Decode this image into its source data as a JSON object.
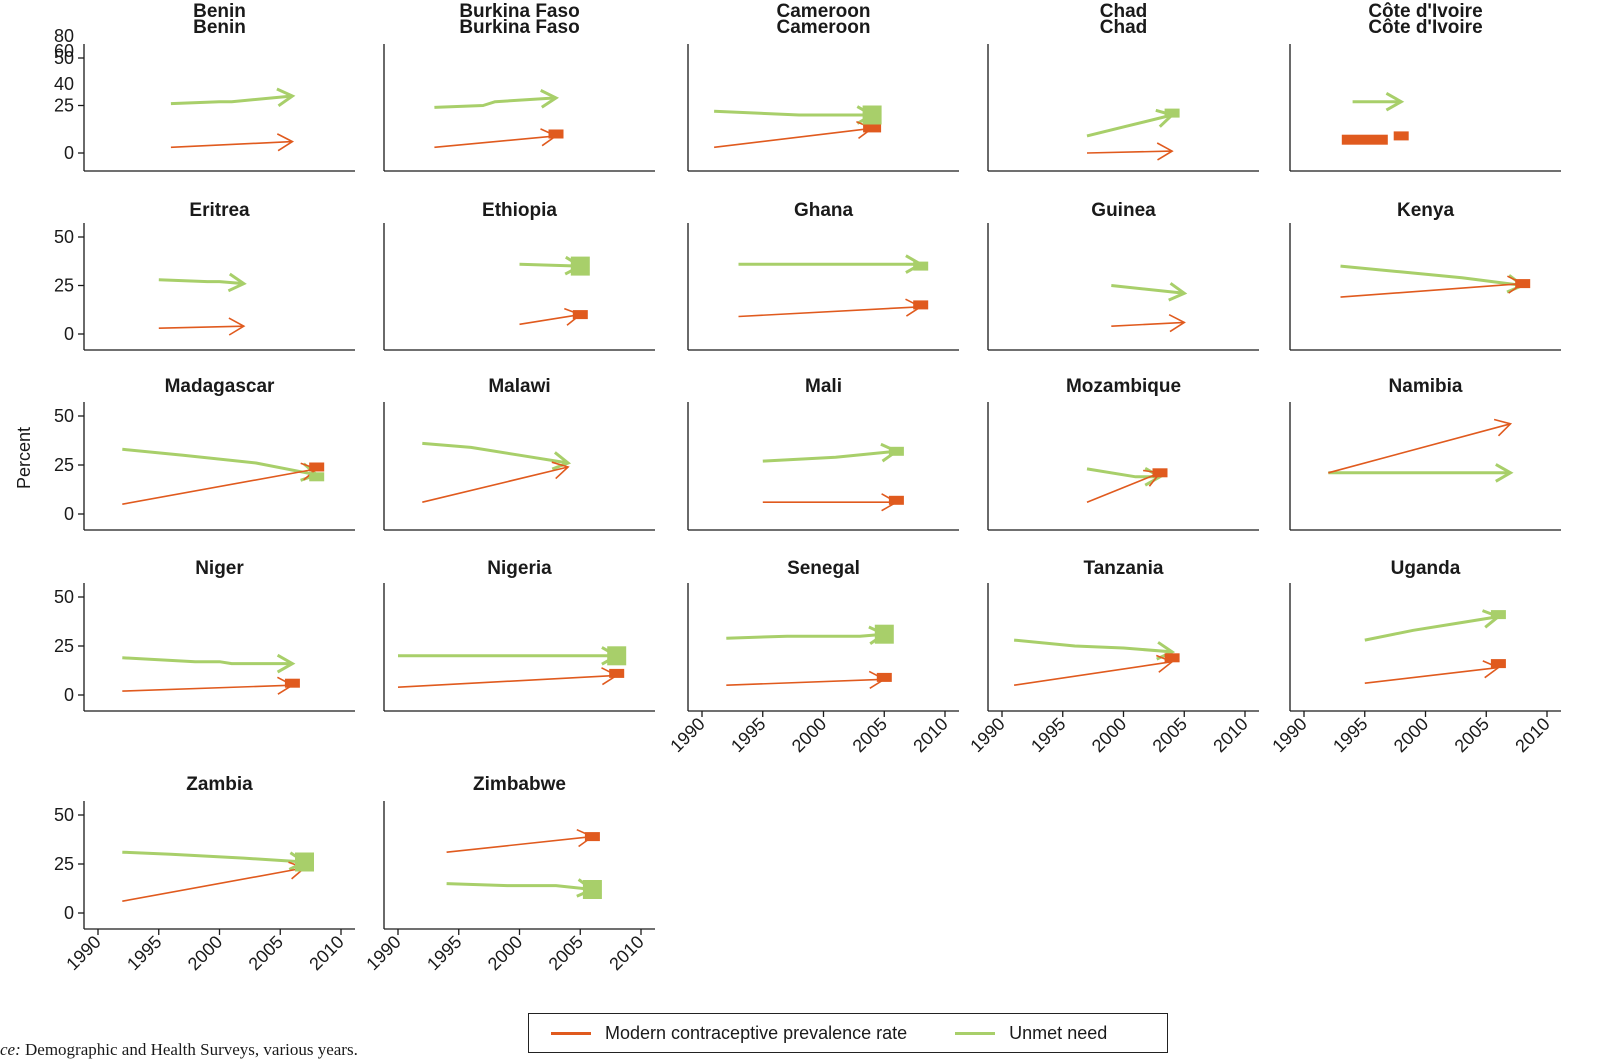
{
  "chart_data": {
    "type": "line",
    "ylabel": "Percent",
    "xlim": [
      1990,
      2010
    ],
    "ylim": [
      0,
      50
    ],
    "x_ticks": [
      "1990",
      "1995",
      "2000",
      "2005",
      "2010"
    ],
    "y_ticks": [
      "0",
      "25",
      "50"
    ],
    "first_panel_extra_y_ticks": [
      "80",
      "60",
      "40"
    ],
    "legend_position": "bottom",
    "legend": [
      {
        "name": "Modern contraceptive prevalence rate",
        "color": "#e05a1e"
      },
      {
        "name": "Unmet need",
        "color": "#a8cf6a"
      }
    ],
    "panels": [
      {
        "title": "Benin",
        "title_repeat": "Benin",
        "mcpr": [
          [
            1996,
            3
          ],
          [
            2006,
            6
          ]
        ],
        "unmet": [
          [
            1996,
            26
          ],
          [
            2000,
            27
          ],
          [
            2001,
            27
          ],
          [
            2006,
            30
          ]
        ],
        "markers": []
      },
      {
        "title": "Burkina Faso",
        "title_repeat": "Burkina Faso",
        "mcpr": [
          [
            1993,
            3
          ],
          [
            2003,
            9
          ]
        ],
        "unmet": [
          [
            1993,
            24
          ],
          [
            1997,
            25
          ],
          [
            1998,
            27
          ],
          [
            2003,
            29
          ]
        ],
        "markers": [
          {
            "series": "mcpr",
            "x": 2003,
            "y": 10,
            "size": "small"
          }
        ]
      },
      {
        "title": "Cameroon",
        "title_repeat": "Cameroon",
        "mcpr": [
          [
            1991,
            3
          ],
          [
            2004,
            13
          ]
        ],
        "unmet": [
          [
            1991,
            22
          ],
          [
            1998,
            20
          ],
          [
            2004,
            20
          ]
        ],
        "markers": [
          {
            "series": "mcpr",
            "x": 2004,
            "y": 14,
            "size": "medium"
          },
          {
            "series": "unmet",
            "x": 2004,
            "y": 20,
            "size": "large"
          }
        ]
      },
      {
        "title": "Chad",
        "title_repeat": "Chad",
        "mcpr": [
          [
            1997,
            0
          ],
          [
            2004,
            1
          ]
        ],
        "unmet": [
          [
            1997,
            9
          ],
          [
            2004,
            20
          ]
        ],
        "markers": [
          {
            "series": "unmet",
            "x": 2004,
            "y": 21,
            "size": "small"
          }
        ]
      },
      {
        "title": "Côte d'Ivoire",
        "title_repeat": "Côte d'Ivoire",
        "mcpr": [],
        "unmet": [
          [
            1994,
            27
          ],
          [
            1998,
            27
          ]
        ],
        "markers": [
          {
            "series": "mcpr",
            "x": 1995,
            "y": 7,
            "size": "wide"
          },
          {
            "series": "mcpr",
            "x": 1998,
            "y": 9,
            "size": "small"
          }
        ]
      },
      {
        "title": "Eritrea",
        "mcpr": [
          [
            1995,
            3
          ],
          [
            2002,
            4
          ]
        ],
        "unmet": [
          [
            1995,
            28
          ],
          [
            1999,
            27
          ],
          [
            2000,
            27
          ],
          [
            2002,
            26
          ]
        ],
        "markers": []
      },
      {
        "title": "Ethiopia",
        "mcpr": [
          [
            2000,
            5
          ],
          [
            2005,
            10
          ]
        ],
        "unmet": [
          [
            2000,
            36
          ],
          [
            2005,
            35
          ]
        ],
        "markers": [
          {
            "series": "mcpr",
            "x": 2005,
            "y": 10,
            "size": "small"
          },
          {
            "series": "unmet",
            "x": 2005,
            "y": 35,
            "size": "large"
          }
        ]
      },
      {
        "title": "Ghana",
        "mcpr": [
          [
            1993,
            9
          ],
          [
            2008,
            14
          ]
        ],
        "unmet": [
          [
            1993,
            36
          ],
          [
            2008,
            36
          ]
        ],
        "markers": [
          {
            "series": "mcpr",
            "x": 2008,
            "y": 15,
            "size": "small"
          },
          {
            "series": "unmet",
            "x": 2008,
            "y": 35,
            "size": "small"
          }
        ]
      },
      {
        "title": "Guinea",
        "mcpr": [
          [
            1999,
            4
          ],
          [
            2005,
            6
          ]
        ],
        "unmet": [
          [
            1999,
            25
          ],
          [
            2005,
            21
          ]
        ],
        "markers": []
      },
      {
        "title": "Kenya",
        "mcpr": [
          [
            1993,
            19
          ],
          [
            2008,
            26
          ]
        ],
        "unmet": [
          [
            1993,
            35
          ],
          [
            1998,
            32
          ],
          [
            2003,
            29
          ],
          [
            2008,
            25
          ]
        ],
        "markers": [
          {
            "series": "mcpr",
            "x": 2008,
            "y": 26,
            "size": "small"
          }
        ]
      },
      {
        "title": "Madagascar",
        "mcpr": [
          [
            1992,
            5
          ],
          [
            2008,
            23
          ]
        ],
        "unmet": [
          [
            1992,
            33
          ],
          [
            1997,
            30
          ],
          [
            2003,
            26
          ],
          [
            2008,
            20
          ]
        ],
        "markers": [
          {
            "series": "mcpr",
            "x": 2008,
            "y": 24,
            "size": "small"
          },
          {
            "series": "unmet",
            "x": 2008,
            "y": 19,
            "size": "small"
          }
        ]
      },
      {
        "title": "Malawi",
        "mcpr": [
          [
            1992,
            6
          ],
          [
            2004,
            24
          ]
        ],
        "unmet": [
          [
            1992,
            36
          ],
          [
            1996,
            34
          ],
          [
            2000,
            30
          ],
          [
            2004,
            26
          ]
        ],
        "markers": []
      },
      {
        "title": "Mali",
        "mcpr": [
          [
            1995,
            6
          ],
          [
            2006,
            6
          ]
        ],
        "unmet": [
          [
            1995,
            27
          ],
          [
            2001,
            29
          ],
          [
            2006,
            32
          ]
        ],
        "markers": [
          {
            "series": "mcpr",
            "x": 2006,
            "y": 7,
            "size": "small"
          },
          {
            "series": "unmet",
            "x": 2006,
            "y": 32,
            "size": "small"
          }
        ]
      },
      {
        "title": "Mozambique",
        "mcpr": [
          [
            1997,
            6
          ],
          [
            2003,
            21
          ]
        ],
        "unmet": [
          [
            1997,
            23
          ],
          [
            2001,
            19
          ],
          [
            2003,
            19
          ]
        ],
        "markers": [
          {
            "series": "mcpr",
            "x": 2003,
            "y": 21,
            "size": "small"
          }
        ]
      },
      {
        "title": "Namibia",
        "mcpr": [
          [
            1992,
            21
          ],
          [
            2007,
            46
          ]
        ],
        "unmet": [
          [
            1992,
            21
          ],
          [
            2007,
            21
          ]
        ],
        "markers": []
      },
      {
        "title": "Niger",
        "mcpr": [
          [
            1992,
            2
          ],
          [
            2006,
            5
          ]
        ],
        "unmet": [
          [
            1992,
            19
          ],
          [
            1998,
            17
          ],
          [
            2000,
            17
          ],
          [
            2001,
            16
          ],
          [
            2006,
            16
          ]
        ],
        "markers": [
          {
            "series": "mcpr",
            "x": 2006,
            "y": 6,
            "size": "small"
          }
        ]
      },
      {
        "title": "Nigeria",
        "mcpr": [
          [
            1990,
            4
          ],
          [
            2008,
            10
          ]
        ],
        "unmet": [
          [
            1990,
            20
          ],
          [
            2008,
            20
          ]
        ],
        "markers": [
          {
            "series": "mcpr",
            "x": 2008,
            "y": 11,
            "size": "small"
          },
          {
            "series": "unmet",
            "x": 2008,
            "y": 20,
            "size": "large"
          }
        ]
      },
      {
        "title": "Senegal",
        "mcpr": [
          [
            1992,
            5
          ],
          [
            2005,
            8
          ]
        ],
        "unmet": [
          [
            1992,
            29
          ],
          [
            1997,
            30
          ],
          [
            2003,
            30
          ],
          [
            2005,
            31
          ]
        ],
        "markers": [
          {
            "series": "mcpr",
            "x": 2005,
            "y": 9,
            "size": "small"
          },
          {
            "series": "unmet",
            "x": 2005,
            "y": 31,
            "size": "large"
          }
        ]
      },
      {
        "title": "Tanzania",
        "mcpr": [
          [
            1991,
            5
          ],
          [
            2004,
            17
          ]
        ],
        "unmet": [
          [
            1991,
            28
          ],
          [
            1996,
            25
          ],
          [
            2000,
            24
          ],
          [
            2004,
            22
          ]
        ],
        "markers": [
          {
            "series": "mcpr",
            "x": 2004,
            "y": 19,
            "size": "small"
          }
        ]
      },
      {
        "title": "Uganda",
        "mcpr": [
          [
            1995,
            6
          ],
          [
            2006,
            14
          ]
        ],
        "unmet": [
          [
            1995,
            28
          ],
          [
            1999,
            33
          ],
          [
            2003,
            37
          ],
          [
            2006,
            40
          ]
        ],
        "markers": [
          {
            "series": "mcpr",
            "x": 2006,
            "y": 16,
            "size": "small"
          },
          {
            "series": "unmet",
            "x": 2006,
            "y": 41,
            "size": "small"
          }
        ]
      },
      {
        "title": "Zambia",
        "mcpr": [
          [
            1992,
            6
          ],
          [
            2007,
            23
          ]
        ],
        "unmet": [
          [
            1992,
            31
          ],
          [
            1996,
            30
          ],
          [
            2002,
            28
          ],
          [
            2007,
            26
          ]
        ],
        "markers": [
          {
            "series": "unmet",
            "x": 2007,
            "y": 26,
            "size": "large"
          }
        ]
      },
      {
        "title": "Zimbabwe",
        "mcpr": [
          [
            1994,
            31
          ],
          [
            2006,
            39
          ]
        ],
        "unmet": [
          [
            1994,
            15
          ],
          [
            1999,
            14
          ],
          [
            2003,
            14
          ],
          [
            2006,
            12
          ]
        ],
        "markers": [
          {
            "series": "mcpr",
            "x": 2006,
            "y": 39,
            "size": "small"
          },
          {
            "series": "unmet",
            "x": 2006,
            "y": 12,
            "size": "large"
          }
        ]
      }
    ]
  },
  "legend_labels": {
    "mcpr": "Modern contraceptive prevalence rate",
    "unmet": "Unmet need"
  },
  "source_note": {
    "lead": "ce:",
    "text": " Demographic and Health Surveys, various years."
  }
}
